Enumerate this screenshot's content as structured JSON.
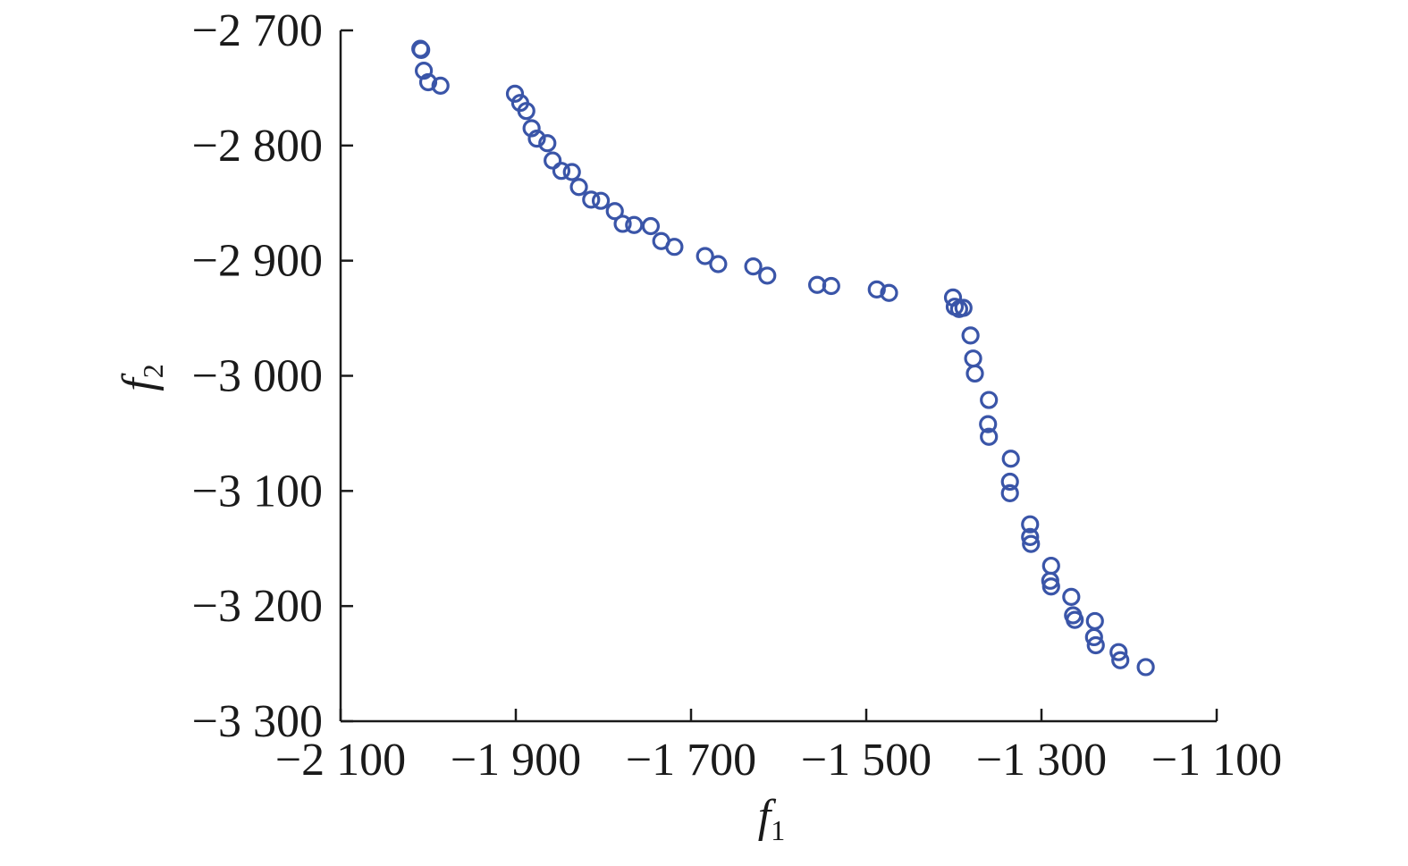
{
  "chart_data": {
    "type": "scatter",
    "title": "",
    "xlabel": "f",
    "xlabel_sub": "1",
    "ylabel": "f",
    "ylabel_sub": "2",
    "xlim": [
      -2100,
      -1100
    ],
    "ylim": [
      -3300,
      -2700
    ],
    "xticks": [
      -2100,
      -1900,
      -1700,
      -1500,
      -1300,
      -1100
    ],
    "yticks": [
      -2700,
      -2800,
      -2900,
      -3000,
      -3100,
      -3200,
      -3300
    ],
    "xtick_labels": [
      "−2 100",
      "−1 900",
      "−1 700",
      "−1 500",
      "−1 300",
      "−1 100"
    ],
    "ytick_labels": [
      "−2 700",
      "−2 800",
      "−2 900",
      "−3 000",
      "−3 100",
      "−3 200",
      "−3 300"
    ],
    "grid": false,
    "legend": "none",
    "marker": "open-circle",
    "color": "#3a55a8",
    "series": [
      {
        "points": [
          [
            -2009,
            -2716
          ],
          [
            -2008,
            -2717
          ],
          [
            -2005,
            -2735
          ],
          [
            -2000,
            -2745
          ],
          [
            -1986,
            -2748
          ],
          [
            -1901,
            -2755
          ],
          [
            -1895,
            -2763
          ],
          [
            -1888,
            -2770
          ],
          [
            -1882,
            -2785
          ],
          [
            -1876,
            -2794
          ],
          [
            -1864,
            -2798
          ],
          [
            -1858,
            -2813
          ],
          [
            -1848,
            -2822
          ],
          [
            -1836,
            -2823
          ],
          [
            -1828,
            -2836
          ],
          [
            -1814,
            -2847
          ],
          [
            -1803,
            -2848
          ],
          [
            -1787,
            -2857
          ],
          [
            -1778,
            -2868
          ],
          [
            -1765,
            -2869
          ],
          [
            -1746,
            -2870
          ],
          [
            -1734,
            -2883
          ],
          [
            -1719,
            -2888
          ],
          [
            -1684,
            -2896
          ],
          [
            -1669,
            -2903
          ],
          [
            -1629,
            -2905
          ],
          [
            -1613,
            -2913
          ],
          [
            -1556,
            -2921
          ],
          [
            -1540,
            -2922
          ],
          [
            -1488,
            -2925
          ],
          [
            -1474,
            -2928
          ],
          [
            -1401,
            -2932
          ],
          [
            -1399,
            -2940
          ],
          [
            -1394,
            -2942
          ],
          [
            -1389,
            -2941
          ],
          [
            -1381,
            -2965
          ],
          [
            -1378,
            -2985
          ],
          [
            -1376,
            -2998
          ],
          [
            -1360,
            -3021
          ],
          [
            -1361,
            -3042
          ],
          [
            -1360,
            -3053
          ],
          [
            -1335,
            -3072
          ],
          [
            -1336,
            -3092
          ],
          [
            -1336,
            -3102
          ],
          [
            -1313,
            -3129
          ],
          [
            -1313,
            -3140
          ],
          [
            -1312,
            -3146
          ],
          [
            -1289,
            -3165
          ],
          [
            -1290,
            -3178
          ],
          [
            -1289,
            -3183
          ],
          [
            -1266,
            -3192
          ],
          [
            -1264,
            -3208
          ],
          [
            -1262,
            -3212
          ],
          [
            -1239,
            -3213
          ],
          [
            -1240,
            -3227
          ],
          [
            -1238,
            -3234
          ],
          [
            -1212,
            -3240
          ],
          [
            -1210,
            -3247
          ],
          [
            -1181,
            -3253
          ]
        ]
      }
    ]
  }
}
